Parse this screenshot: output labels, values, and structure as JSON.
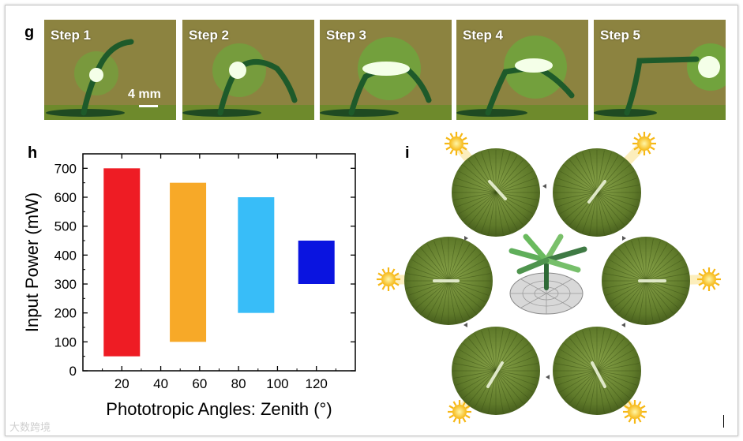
{
  "panels": {
    "g": "g",
    "h": "h",
    "i": "i"
  },
  "steps": [
    {
      "label": "Step 1"
    },
    {
      "label": "Step 2"
    },
    {
      "label": "Step 3"
    },
    {
      "label": "Step 4"
    },
    {
      "label": "Step 5"
    }
  ],
  "scale_label": "4 mm",
  "watermark": "大数跨境",
  "chart_data": {
    "type": "floating-bar",
    "xlabel": "Phototropic Angles: Zenith (°)",
    "ylabel": "Input Power (mW)",
    "xlim": [
      0,
      140
    ],
    "ylim": [
      0,
      750
    ],
    "xticks": [
      20,
      40,
      60,
      80,
      100,
      120
    ],
    "yticks": [
      0,
      100,
      200,
      300,
      400,
      500,
      600,
      700
    ],
    "bars": [
      {
        "x": 20,
        "low": 50,
        "high": 700,
        "color": "#ee1c24"
      },
      {
        "x": 54,
        "low": 100,
        "high": 650,
        "color": "#f7a928"
      },
      {
        "x": 89,
        "low": 200,
        "high": 600,
        "color": "#38bdf8"
      },
      {
        "x": 120,
        "low": 300,
        "high": 450,
        "color": "#0a14e0"
      }
    ]
  },
  "colors": {
    "leaf": "#5f7a2a",
    "sun": "#f6c11a",
    "background_photo": "#8a7e3c"
  }
}
